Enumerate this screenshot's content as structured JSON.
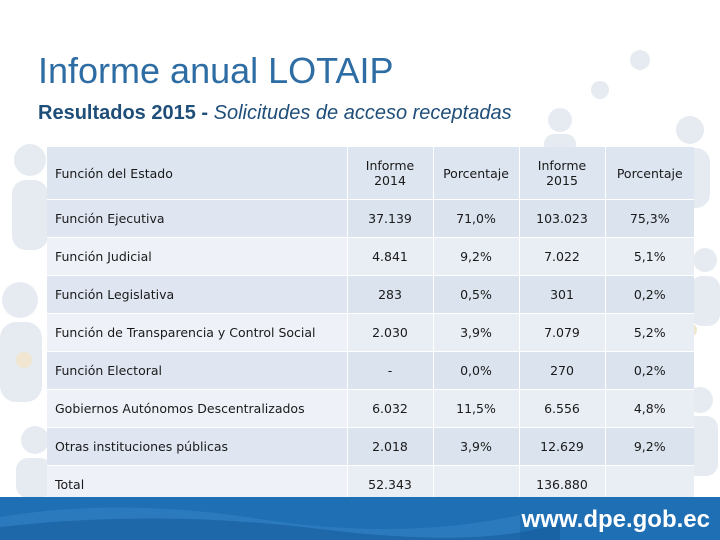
{
  "slide": {
    "title": "Informe anual LOTAIP",
    "subtitle_bold": "Resultados 2015 - ",
    "subtitle_italic": "Solicitudes de acceso receptadas"
  },
  "table": {
    "headers": [
      "Función del Estado",
      "Informe 2014",
      "Porcentaje",
      "Informe 2015",
      "Porcentaje"
    ],
    "rows": [
      [
        "Función Ejecutiva",
        "37.139",
        "71,0%",
        "103.023",
        "75,3%"
      ],
      [
        "Función Judicial",
        "4.841",
        "9,2%",
        "7.022",
        "5,1%"
      ],
      [
        "Función Legislativa",
        "283",
        "0,5%",
        "301",
        "0,2%"
      ],
      [
        "Función de Transparencia y Control Social",
        "2.030",
        "3,9%",
        "7.079",
        "5,2%"
      ],
      [
        "Función Electoral",
        "-",
        "0,0%",
        "270",
        "0,2%"
      ],
      [
        "Gobiernos Autónomos Descentralizados",
        "6.032",
        "11,5%",
        "6.556",
        "4,8%"
      ],
      [
        "Otras instituciones públicas",
        "2.018",
        "3,9%",
        "12.629",
        "9,2%"
      ],
      [
        "Total",
        "52.343",
        "",
        "136.880",
        ""
      ]
    ]
  },
  "footer": {
    "url": "www.dpe.gob.ec"
  },
  "colors": {
    "title": "#2e6da4",
    "footer_bar": "#1f6fb5"
  }
}
